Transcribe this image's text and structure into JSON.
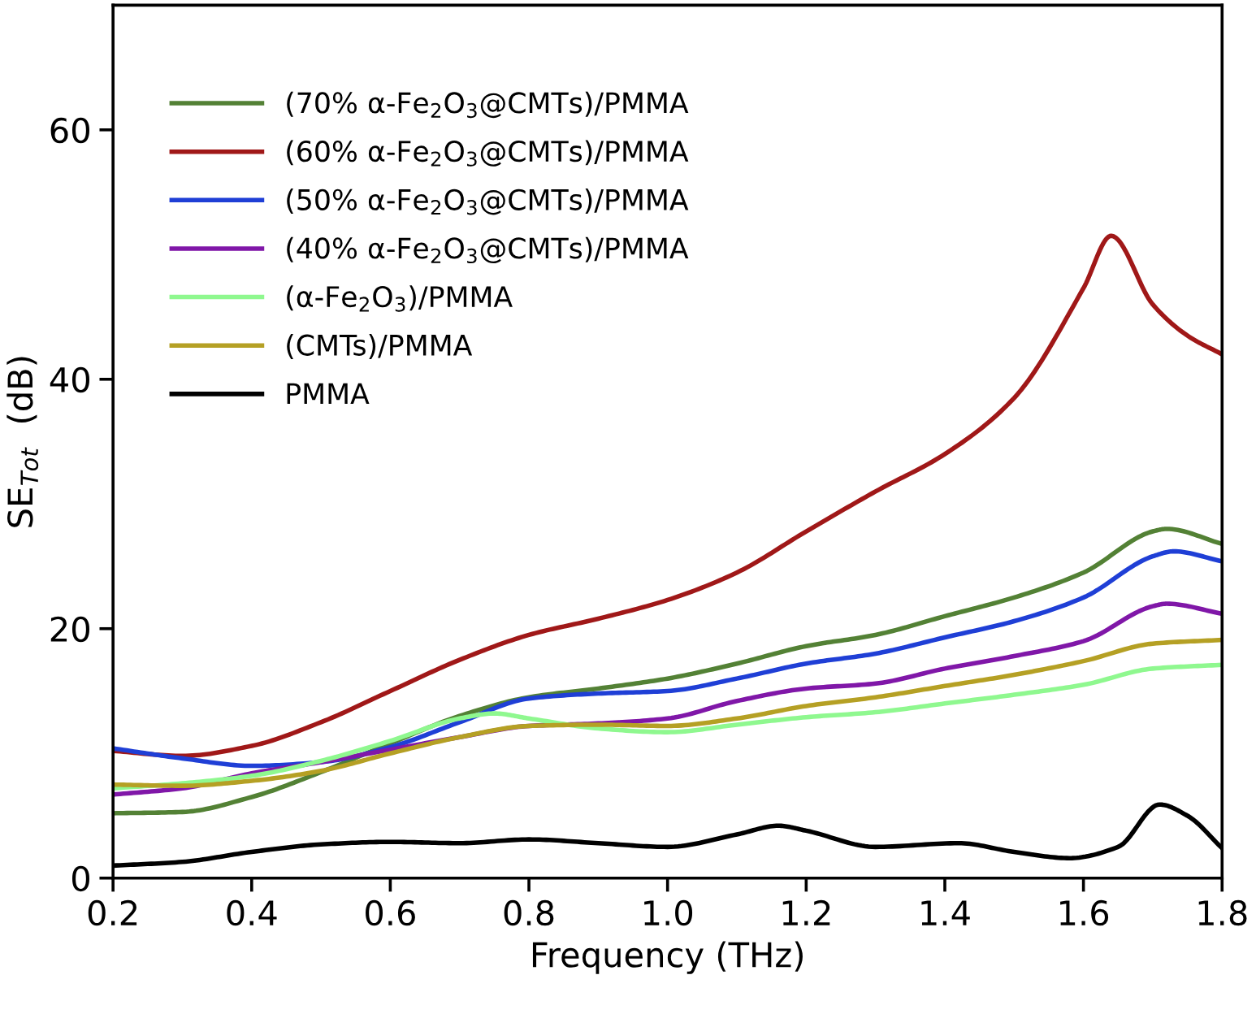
{
  "chart_data": {
    "type": "line",
    "xlabel": "Frequency (THz)",
    "ylabel": "SE$_{Tot}$  (dB)",
    "xlim": [
      0.2,
      1.8
    ],
    "ylim": [
      0,
      70
    ],
    "xticks": [
      {
        "value": 0.2,
        "label": "0.2"
      },
      {
        "value": 0.4,
        "label": "0.4"
      },
      {
        "value": 0.6,
        "label": "0.6"
      },
      {
        "value": 0.8,
        "label": "0.8"
      },
      {
        "value": 1.0,
        "label": "1.0"
      },
      {
        "value": 1.2,
        "label": "1.2"
      },
      {
        "value": 1.4,
        "label": "1.4"
      },
      {
        "value": 1.6,
        "label": "1.6"
      },
      {
        "value": 1.8,
        "label": "1.8"
      }
    ],
    "yticks": [
      0,
      20,
      40,
      60
    ],
    "grid": false,
    "legend": "top left",
    "marker": "none",
    "line_style": "solid",
    "series": [
      {
        "name": "(70% α-Fe$_{2}$O$_{3}$@CMTs)/PMMA",
        "color": "#538135",
        "x": [
          0.2,
          0.3,
          0.4,
          0.5,
          0.6,
          0.7,
          0.8,
          0.9,
          1.0,
          1.1,
          1.2,
          1.3,
          1.4,
          1.5,
          1.6,
          1.7,
          1.72,
          1.8
        ],
        "values": [
          5.2,
          5.3,
          6.5,
          8.5,
          10.8,
          13,
          14.5,
          15.2,
          16,
          17.2,
          18.6,
          19.5,
          21,
          22.5,
          24.5,
          27.8,
          28,
          26.8
        ]
      },
      {
        "name": "(60% α-Fe$_{2}$O$_{3}$@CMTs)/PMMA",
        "color": "#a01818",
        "x": [
          0.2,
          0.3,
          0.4,
          0.5,
          0.6,
          0.7,
          0.8,
          0.9,
          1.0,
          1.1,
          1.2,
          1.3,
          1.4,
          1.5,
          1.6,
          1.64,
          1.7,
          1.75,
          1.8
        ],
        "values": [
          10.2,
          9.8,
          10.6,
          12.5,
          15,
          17.5,
          19.5,
          20.8,
          22.3,
          24.5,
          27.8,
          31,
          34,
          38.5,
          47.3,
          51.5,
          46,
          43.5,
          42
        ]
      },
      {
        "name": "(50% α-Fe$_{2}$O$_{3}$@CMTs)/PMMA",
        "color": "#1f3fd6",
        "x": [
          0.2,
          0.3,
          0.4,
          0.5,
          0.6,
          0.7,
          0.8,
          0.9,
          1.0,
          1.1,
          1.2,
          1.3,
          1.4,
          1.5,
          1.6,
          1.7,
          1.73,
          1.8
        ],
        "values": [
          10.4,
          9.6,
          9.0,
          9.3,
          10.5,
          12.5,
          14.4,
          14.8,
          15,
          16,
          17.2,
          18,
          19.3,
          20.6,
          22.5,
          25.8,
          26.2,
          25.4
        ]
      },
      {
        "name": "(40% α-Fe$_{2}$O$_{3}$@CMTs)/PMMA",
        "color": "#8017a8",
        "x": [
          0.2,
          0.3,
          0.4,
          0.5,
          0.6,
          0.7,
          0.8,
          0.9,
          1.0,
          1.1,
          1.2,
          1.3,
          1.4,
          1.5,
          1.6,
          1.7,
          1.72,
          1.8
        ],
        "values": [
          6.7,
          7.2,
          8.4,
          9.3,
          10.3,
          11.3,
          12.2,
          12.4,
          12.8,
          14.2,
          15.2,
          15.6,
          16.8,
          17.8,
          19,
          21.8,
          22,
          21.2
        ]
      },
      {
        "name": "(α-Fe$_{2}$O$_{3}$)/PMMA",
        "color": "#8ff88f",
        "x": [
          0.2,
          0.3,
          0.4,
          0.5,
          0.6,
          0.7,
          0.75,
          0.8,
          0.9,
          1.0,
          1.1,
          1.2,
          1.3,
          1.4,
          1.5,
          1.6,
          1.7,
          1.8
        ],
        "values": [
          7.2,
          7.6,
          8.2,
          9.4,
          11,
          12.8,
          13.2,
          12.8,
          12,
          11.7,
          12.3,
          12.9,
          13.3,
          14,
          14.7,
          15.5,
          16.8,
          17.1
        ]
      },
      {
        "name": "(CMTs)/PMMA",
        "color": "#b5a024",
        "x": [
          0.2,
          0.3,
          0.4,
          0.5,
          0.6,
          0.7,
          0.8,
          0.9,
          1.0,
          1.1,
          1.2,
          1.3,
          1.4,
          1.5,
          1.6,
          1.7,
          1.8
        ],
        "values": [
          7.5,
          7.4,
          7.8,
          8.6,
          10,
          11.3,
          12.2,
          12.3,
          12.2,
          12.8,
          13.8,
          14.5,
          15.4,
          16.3,
          17.4,
          18.8,
          19.1
        ]
      },
      {
        "name": "PMMA",
        "color": "#000000",
        "x": [
          0.2,
          0.3,
          0.4,
          0.5,
          0.6,
          0.7,
          0.8,
          0.9,
          1.0,
          1.1,
          1.16,
          1.2,
          1.3,
          1.42,
          1.5,
          1.58,
          1.65,
          1.71,
          1.75,
          1.8
        ],
        "values": [
          1.0,
          1.3,
          2.1,
          2.7,
          2.9,
          2.8,
          3.1,
          2.8,
          2.5,
          3.5,
          4.2,
          3.8,
          2.5,
          2.8,
          2.1,
          1.6,
          2.5,
          5.9,
          5,
          2.4
        ]
      }
    ]
  }
}
